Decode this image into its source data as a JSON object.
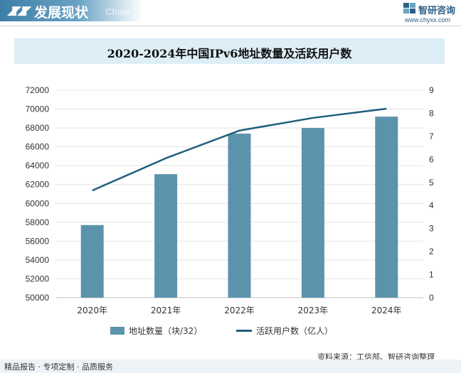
{
  "header": {
    "title": "发展现状",
    "subtitle": "Chain",
    "logo_name": "智研咨询",
    "logo_url": "www.chyxx.com"
  },
  "source": "资料来源：工信部、智研咨询整理",
  "footer": "精品报告 · 专项定制 · 品质服务",
  "colors": {
    "bar": "#5c93ac",
    "line": "#1f5e7c",
    "accent": "#3d7fa8"
  },
  "chart_data": {
    "type": "bar",
    "title": "2020-2024年中国IPv6地址数量及活跃用户数",
    "categories": [
      "2020年",
      "2021年",
      "2022年",
      "2023年",
      "2024年"
    ],
    "series": [
      {
        "name": "地址数量（块/32）",
        "type": "bar",
        "axis": "left",
        "values": [
          57700,
          63100,
          67400,
          68000,
          69200
        ]
      },
      {
        "name": "活跃用户数（亿人）",
        "type": "line",
        "axis": "right",
        "values": [
          4.65,
          6.05,
          7.25,
          7.8,
          8.2
        ]
      }
    ],
    "y_left": {
      "ylim": [
        50000,
        72000
      ],
      "ticks": [
        50000,
        52000,
        54000,
        56000,
        58000,
        60000,
        62000,
        64000,
        66000,
        68000,
        70000,
        72000
      ]
    },
    "y_right": {
      "ylim": [
        0,
        9
      ],
      "ticks": [
        0,
        1,
        2,
        3,
        4,
        5,
        6,
        7,
        8,
        9
      ]
    },
    "grid": true,
    "legend": "bottom"
  }
}
